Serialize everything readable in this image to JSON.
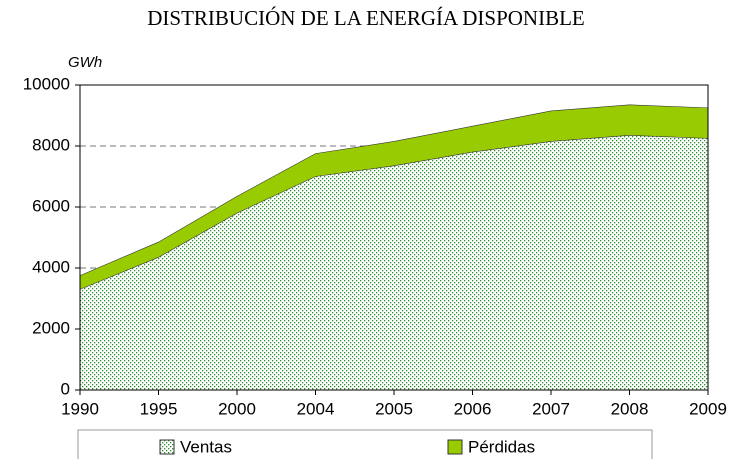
{
  "chart_data": {
    "type": "stacked_area",
    "title": "DISTRIBUCIÓN DE LA ENERGÍA DISPONIBLE",
    "y_label": "GWh",
    "categories": [
      "1990",
      "1995",
      "2000",
      "2004",
      "2005",
      "2006",
      "2007",
      "2008",
      "2009"
    ],
    "series": [
      {
        "name": "Ventas",
        "color": "#2e8b2e",
        "fill": "dotted",
        "values": [
          3300,
          4350,
          5800,
          7000,
          7350,
          7800,
          8150,
          8350,
          8250
        ]
      },
      {
        "name": "Pérdidas",
        "color": "#99cc00",
        "fill": "solid",
        "values": [
          450,
          500,
          550,
          750,
          800,
          850,
          1000,
          1000,
          1000
        ]
      }
    ],
    "ylim": [
      0,
      10000
    ],
    "yticks": [
      0,
      2000,
      4000,
      6000,
      8000,
      10000
    ],
    "grid": true,
    "legend": "bottom"
  }
}
